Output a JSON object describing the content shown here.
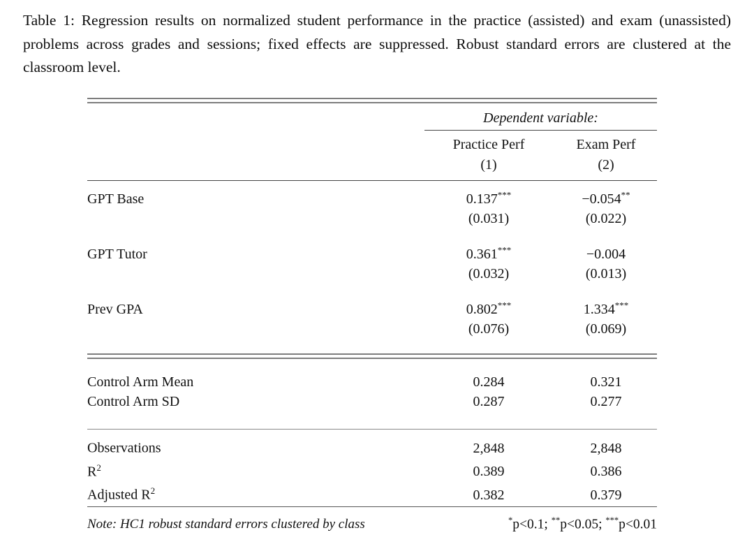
{
  "caption": {
    "text": "Table 1: Regression results on normalized student performance in the practice (assisted) and exam (unassisted) problems across grades and sessions; fixed effects are suppressed. Robust standard errors are clustered at the classroom level."
  },
  "table": {
    "dependent_variable_label": "Dependent variable:",
    "columns": [
      {
        "label": "Practice Perf",
        "number": "(1)"
      },
      {
        "label": "Exam Perf",
        "number": "(2)"
      }
    ],
    "coefficients": [
      {
        "name": "GPT Base",
        "col1": {
          "value": "0.137",
          "stars": "***",
          "se": "(0.031)"
        },
        "col2": {
          "value": "−0.054",
          "stars": "**",
          "se": "(0.022)"
        }
      },
      {
        "name": "GPT Tutor",
        "col1": {
          "value": "0.361",
          "stars": "***",
          "se": "(0.032)"
        },
        "col2": {
          "value": "−0.004",
          "stars": "",
          "se": "(0.013)"
        }
      },
      {
        "name": "Prev GPA",
        "col1": {
          "value": "0.802",
          "stars": "***",
          "se": "(0.076)"
        },
        "col2": {
          "value": "1.334",
          "stars": "***",
          "se": "(0.069)"
        }
      }
    ],
    "summary_rows": [
      {
        "name": "Control Arm Mean",
        "col1": "0.284",
        "col2": "0.321"
      },
      {
        "name": "Control Arm SD",
        "col1": "0.287",
        "col2": "0.277"
      }
    ],
    "stats_rows": [
      {
        "name": "Observations",
        "sup": "",
        "col1": "2,848",
        "col2": "2,848"
      },
      {
        "name": "R",
        "sup": "2",
        "col1": "0.389",
        "col2": "0.386"
      },
      {
        "name": "Adjusted R",
        "sup": "2",
        "col1": "0.382",
        "col2": "0.379"
      }
    ],
    "note": {
      "left": "Note: HC1 robust standard errors clustered by class",
      "legend": [
        {
          "stars": "*",
          "text": "p<0.1; "
        },
        {
          "stars": "**",
          "text": "p<0.05; "
        },
        {
          "stars": "***",
          "text": "p<0.01"
        }
      ]
    }
  }
}
